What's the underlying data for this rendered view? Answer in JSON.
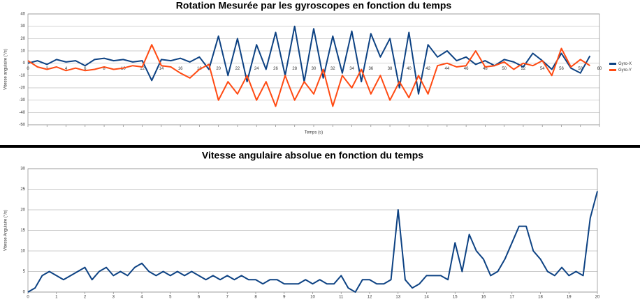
{
  "chart_data": [
    {
      "type": "line",
      "title": "Rotation Mesurée par les gyroscopes en fonction du temps",
      "y_label": "Vitesse angulaire (°/s)",
      "x_label": "Temps (s)",
      "x": [
        0,
        1,
        2,
        3,
        4,
        5,
        6,
        7,
        8,
        9,
        10,
        11,
        12,
        13,
        14,
        15,
        16,
        17,
        18,
        19,
        20,
        21,
        22,
        23,
        24,
        25,
        26,
        27,
        28,
        29,
        30,
        31,
        32,
        33,
        34,
        35,
        36,
        37,
        38,
        39,
        40,
        41,
        42,
        43,
        44,
        45,
        46,
        47,
        48,
        49,
        50,
        51,
        52,
        53,
        54,
        55,
        56,
        57,
        58,
        59
      ],
      "series": [
        {
          "name": "Gyro-X",
          "color": "#0d4283",
          "values": [
            0,
            2,
            -1,
            3,
            1,
            2,
            -2,
            3,
            4,
            2,
            3,
            1,
            2,
            -14,
            3,
            2,
            4,
            1,
            5,
            -5,
            22,
            -10,
            20,
            -15,
            15,
            -5,
            25,
            -10,
            30,
            -15,
            28,
            -12,
            22,
            -8,
            26,
            -15,
            24,
            5,
            20,
            -20,
            25,
            -25,
            15,
            5,
            10,
            2,
            5,
            -1,
            2,
            -2,
            3,
            1,
            -3,
            8,
            2,
            -5,
            8,
            -4,
            -8,
            6
          ]
        },
        {
          "name": "Gyro-Y",
          "color": "#ff4a12",
          "values": [
            2,
            -3,
            -5,
            -3,
            -6,
            -4,
            -6,
            -5,
            -3,
            -5,
            -4,
            -2,
            -3,
            15,
            -2,
            -3,
            -8,
            -12,
            -5,
            -1,
            -30,
            -15,
            -25,
            -10,
            -30,
            -15,
            -35,
            -10,
            -30,
            -15,
            -25,
            -5,
            -35,
            -10,
            -20,
            -5,
            -25,
            -10,
            -30,
            -15,
            -28,
            -10,
            -25,
            -2,
            0,
            -3,
            -2,
            10,
            -3,
            -2,
            1,
            -5,
            0,
            -2,
            2,
            -10,
            12,
            -3,
            3,
            -2
          ]
        }
      ],
      "xlim": [
        0,
        60
      ],
      "xticks": [
        0,
        2,
        4,
        6,
        8,
        10,
        12,
        14,
        16,
        18,
        20,
        22,
        24,
        26,
        28,
        30,
        32,
        34,
        36,
        38,
        40,
        42,
        44,
        46,
        48,
        50,
        52,
        54,
        56,
        58,
        60
      ],
      "ylim": [
        -50,
        40
      ],
      "yticks": [
        -50,
        -40,
        -30,
        -20,
        -10,
        0,
        10,
        20,
        30,
        40
      ],
      "grid": true,
      "legend": "right"
    },
    {
      "type": "line",
      "title": "Vitesse angulaire absolue en fonction du temps",
      "y_label": "Vitesse Angulaire (°/s)",
      "x": [
        0,
        0.25,
        0.5,
        0.75,
        1,
        1.25,
        1.5,
        1.75,
        2,
        2.25,
        2.5,
        2.75,
        3,
        3.25,
        3.5,
        3.75,
        4,
        4.25,
        4.5,
        4.75,
        5,
        5.25,
        5.5,
        5.75,
        6,
        6.25,
        6.5,
        6.75,
        7,
        7.25,
        7.5,
        7.75,
        8,
        8.25,
        8.5,
        8.75,
        9,
        9.25,
        9.5,
        9.75,
        10,
        10.25,
        10.5,
        10.75,
        11,
        11.25,
        11.5,
        11.75,
        12,
        12.25,
        12.5,
        12.75,
        13,
        13.25,
        13.5,
        13.75,
        14,
        14.25,
        14.5,
        14.75,
        15,
        15.25,
        15.5,
        15.75,
        16,
        16.25,
        16.5,
        16.75,
        17,
        17.25,
        17.5,
        17.75,
        18,
        18.25,
        18.5,
        18.75,
        19,
        19.25,
        19.5,
        19.75,
        20
      ],
      "series": [
        {
          "color": "#0d4283",
          "values": [
            0,
            1,
            4,
            5,
            4,
            3,
            4,
            5,
            6,
            3,
            5,
            6,
            4,
            5,
            4,
            6,
            7,
            5,
            4,
            5,
            4,
            5,
            4,
            5,
            4,
            3,
            4,
            3,
            4,
            3,
            4,
            3,
            3,
            2,
            3,
            3,
            2,
            2,
            2,
            3,
            2,
            3,
            2,
            2,
            4,
            1,
            0,
            3,
            3,
            2,
            2,
            3,
            20,
            3,
            1,
            2,
            4,
            4,
            4,
            3,
            12,
            5,
            14,
            10,
            8,
            4,
            5,
            8,
            12,
            16,
            16,
            10,
            8,
            5,
            4,
            6,
            4,
            5,
            4,
            18,
            24.5
          ]
        }
      ],
      "xlim": [
        0,
        20
      ],
      "xticks": [
        0,
        1,
        2,
        3,
        4,
        5,
        6,
        7,
        8,
        9,
        10,
        11,
        12,
        13,
        14,
        15,
        16,
        17,
        18,
        19,
        20
      ],
      "ylim": [
        0,
        30
      ],
      "yticks": [
        0,
        5,
        10,
        15,
        20,
        25,
        30
      ],
      "grid": true
    }
  ]
}
